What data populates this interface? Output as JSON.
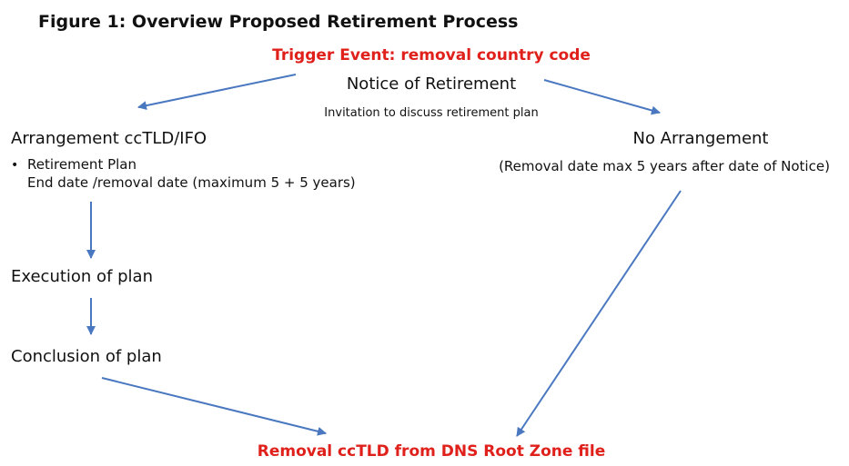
{
  "title": "Figure 1: Overview Proposed Retirement Process",
  "trigger": "Trigger Event: removal country code",
  "notice": {
    "label": "Notice of Retirement",
    "sub": "Invitation to discuss retirement plan"
  },
  "arrangement": {
    "label": "Arrangement ccTLD/IFO",
    "bullet": "Retirement Plan",
    "detail": "End date /removal date (maximum 5 + 5 years)"
  },
  "no_arrangement": {
    "label": "No Arrangement",
    "detail": "(Removal date max 5 years after date of Notice)"
  },
  "execution": "Execution of plan",
  "conclusion": "Conclusion of plan",
  "removal": "Removal ccTLD from DNS Root Zone file"
}
